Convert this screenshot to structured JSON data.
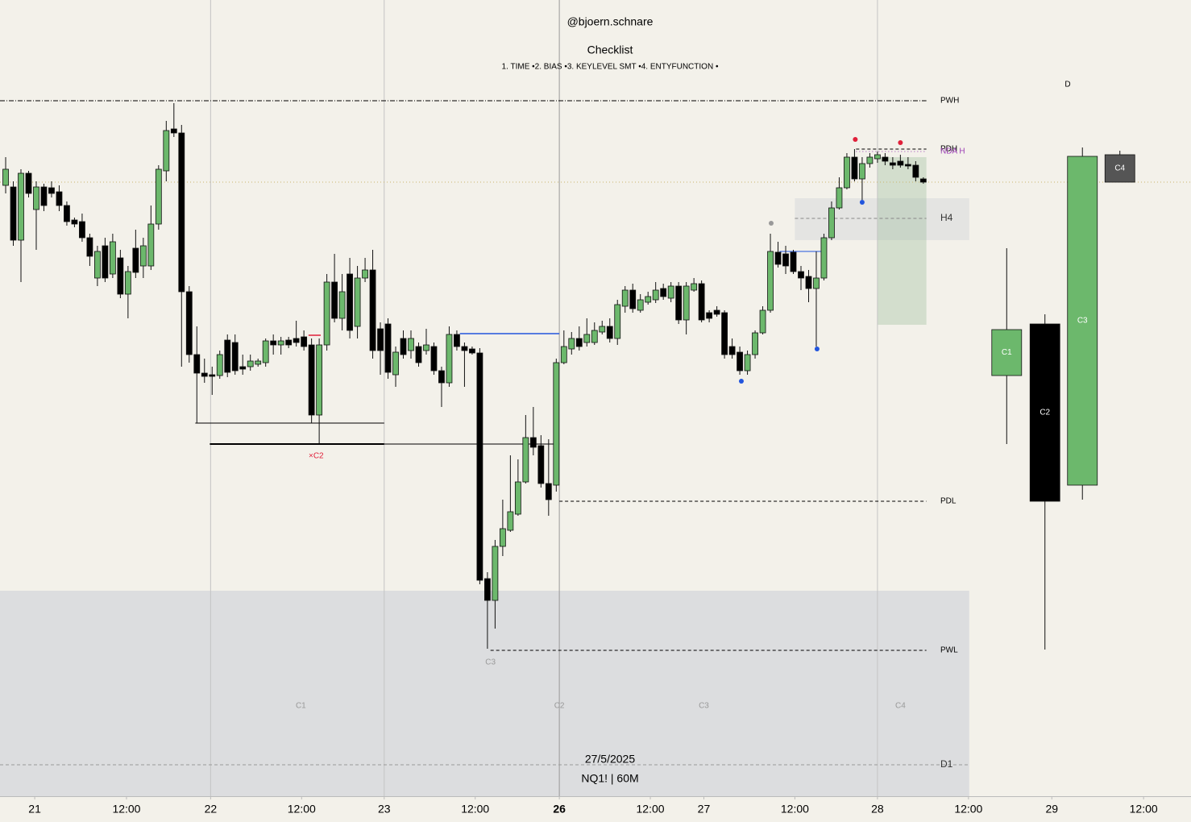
{
  "header": {
    "handle": "@bjoern.schnare",
    "checklist_title": "Checklist",
    "checklist": "1. TIME •2. BIAS •3. KEYLEVEL SMT •4. ENTYFUNCTION •",
    "timeframe_marker": "D"
  },
  "footer": {
    "date": "27/5/2025",
    "symbol": "NQ1! | 60M"
  },
  "chart_data": {
    "type": "candlestick",
    "xlim": [
      -0.74,
      155.0
    ],
    "ylim": [
      12,
      1000
    ],
    "xticks": [
      {
        "value": 3.8,
        "label": "21"
      },
      {
        "value": 15.8,
        "label": "12:00"
      },
      {
        "value": 26.8,
        "label": "22"
      },
      {
        "value": 38.7,
        "label": "12:00"
      },
      {
        "value": 49.5,
        "label": "23"
      },
      {
        "value": 61.4,
        "label": "12:00"
      },
      {
        "value": 72.4,
        "label": "26"
      },
      {
        "value": 84.3,
        "label": "12:00"
      },
      {
        "value": 91.3,
        "label": "27"
      },
      {
        "value": 103.2,
        "label": "12:00"
      },
      {
        "value": 114.0,
        "label": "28"
      },
      {
        "value": 125.9,
        "label": "12:00"
      },
      {
        "value": 136.8,
        "label": "29"
      },
      {
        "value": 148.8,
        "label": "12:00"
      }
    ],
    "separators": [
      26.8,
      49.5,
      72.4,
      114.0
    ],
    "up_color": "#6cb86c",
    "down_color": "#000000",
    "x": [
      0,
      1,
      2,
      3,
      4,
      5,
      6,
      7,
      8,
      9,
      10,
      11,
      12,
      13,
      14,
      15,
      16,
      17,
      18,
      19,
      20,
      21,
      22,
      23,
      24,
      25,
      26,
      27,
      28,
      29,
      30,
      31,
      32,
      33,
      34,
      35,
      36,
      37,
      38,
      39,
      40,
      41,
      42,
      43,
      44,
      45,
      46,
      47,
      48,
      49,
      50,
      51,
      52,
      53,
      54,
      55,
      56,
      57,
      58,
      59,
      60,
      61,
      62,
      63,
      64,
      65,
      66,
      67,
      68,
      69,
      70,
      71,
      72,
      73,
      74,
      75,
      76,
      77,
      78,
      79,
      80,
      81,
      82,
      83,
      84,
      85,
      86,
      87,
      88,
      89,
      90,
      91,
      92,
      93,
      94,
      95,
      96,
      97,
      98,
      99,
      100,
      101,
      102,
      103,
      104,
      105,
      106,
      107,
      108,
      109,
      110,
      111,
      112,
      113,
      114,
      115,
      116,
      117,
      118,
      119,
      120
    ],
    "open": [
      770,
      768,
      702,
      785,
      740,
      768,
      767,
      762,
      745,
      727,
      725,
      705,
      655,
      695,
      660,
      680,
      635,
      692,
      670,
      670,
      722,
      788,
      840,
      835,
      638,
      560,
      537,
      535,
      534,
      578,
      575,
      545,
      545,
      548,
      550,
      577,
      572,
      578,
      580,
      582,
      572,
      485,
      572,
      650,
      605,
      660,
      595,
      655,
      665,
      592,
      598,
      535,
      580,
      565,
      570,
      565,
      570,
      540,
      525,
      585,
      570,
      567,
      562,
      282,
      255,
      322,
      342,
      362,
      402,
      457,
      447,
      400,
      398,
      550,
      567,
      580,
      575,
      575,
      588,
      595,
      580,
      620,
      640,
      615,
      625,
      628,
      642,
      630,
      645,
      603,
      640,
      648,
      612,
      615,
      612,
      570,
      563,
      540,
      560,
      587,
      615,
      687,
      685,
      687,
      663,
      657,
      642,
      655,
      705,
      742,
      767,
      805,
      778,
      797,
      803,
      805,
      798,
      800,
      796,
      795,
      778
    ],
    "high": [
      805,
      775,
      790,
      788,
      775,
      772,
      775,
      770,
      750,
      730,
      735,
      710,
      695,
      705,
      710,
      690,
      670,
      715,
      705,
      745,
      795,
      850,
      872,
      845,
      645,
      595,
      555,
      545,
      565,
      585,
      585,
      560,
      560,
      555,
      580,
      585,
      582,
      582,
      602,
      590,
      580,
      580,
      660,
      685,
      660,
      680,
      670,
      680,
      690,
      600,
      605,
      570,
      590,
      590,
      575,
      592,
      575,
      545,
      595,
      590,
      575,
      570,
      568,
      290,
      330,
      380,
      435,
      430,
      485,
      495,
      460,
      455,
      555,
      590,
      588,
      595,
      605,
      600,
      602,
      605,
      628,
      645,
      648,
      635,
      638,
      650,
      648,
      650,
      650,
      650,
      655,
      652,
      615,
      620,
      615,
      580,
      570,
      565,
      590,
      620,
      710,
      700,
      695,
      690,
      670,
      665,
      688,
      710,
      750,
      780,
      810,
      815,
      805,
      810,
      812,
      810,
      805,
      808,
      805,
      800,
      780
    ],
    "low": [
      760,
      695,
      650,
      755,
      690,
      738,
      755,
      738,
      720,
      718,
      700,
      670,
      645,
      650,
      655,
      630,
      605,
      655,
      655,
      665,
      715,
      775,
      830,
      545,
      550,
      475,
      525,
      510,
      530,
      532,
      535,
      535,
      540,
      545,
      545,
      560,
      560,
      568,
      570,
      565,
      475,
      450,
      565,
      600,
      590,
      580,
      580,
      650,
      555,
      535,
      530,
      520,
      555,
      555,
      545,
      560,
      535,
      495,
      520,
      565,
      520,
      560,
      275,
      195,
      220,
      310,
      340,
      360,
      400,
      435,
      395,
      360,
      390,
      548,
      560,
      565,
      570,
      572,
      585,
      575,
      572,
      612,
      612,
      612,
      622,
      624,
      628,
      625,
      598,
      585,
      638,
      600,
      600,
      607,
      555,
      555,
      535,
      535,
      555,
      585,
      612,
      668,
      660,
      660,
      640,
      625,
      570,
      652,
      702,
      740,
      765,
      775,
      752,
      792,
      798,
      795,
      790,
      792,
      790,
      775,
      772
    ],
    "close": [
      790,
      702,
      785,
      760,
      768,
      745,
      760,
      745,
      725,
      722,
      705,
      682,
      688,
      655,
      700,
      635,
      663,
      662,
      695,
      722,
      790,
      838,
      835,
      638,
      560,
      537,
      533,
      533,
      560,
      538,
      540,
      542,
      552,
      552,
      577,
      572,
      577,
      572,
      575,
      570,
      485,
      572,
      650,
      605,
      638,
      590,
      655,
      665,
      565,
      565,
      538,
      563,
      560,
      580,
      550,
      572,
      540,
      525,
      585,
      570,
      565,
      562,
      280,
      255,
      322,
      344,
      365,
      402,
      457,
      445,
      400,
      380,
      550,
      570,
      580,
      570,
      585,
      590,
      595,
      580,
      622,
      640,
      617,
      628,
      632,
      640,
      632,
      645,
      603,
      645,
      648,
      603,
      605,
      610,
      560,
      560,
      540,
      560,
      587,
      615,
      688,
      672,
      670,
      663,
      655,
      642,
      655,
      705,
      742,
      767,
      805,
      778,
      797,
      805,
      808,
      800,
      795,
      795,
      794,
      780,
      774
    ],
    "htf": {
      "labels": [
        "C1",
        "C2",
        "C3",
        "C4"
      ],
      "x": [
        130.9,
        135.9,
        140.8,
        145.7
      ],
      "open": [
        534,
        598,
        398,
        808
      ],
      "high": [
        692,
        610,
        817,
        813
      ],
      "low": [
        449,
        194,
        380,
        774
      ],
      "close": [
        591,
        378,
        806,
        774
      ],
      "colors": [
        "#6cb86c",
        "#000000",
        "#6cb86c",
        "#555555"
      ]
    },
    "levels": [
      {
        "label": "PWH",
        "value": 875,
        "from": -0.74,
        "to": 120.4,
        "style": "dashdot",
        "color": "#000000"
      },
      {
        "label": "PDH",
        "value": 815,
        "from": 111.2,
        "to": 120.4,
        "style": "dashed",
        "color": "#000000"
      },
      {
        "label": "NDA H",
        "value": 812,
        "from": 111.2,
        "to": 120.4,
        "style": "dotted",
        "color": "#9b3fb5"
      },
      {
        "label": "H4",
        "value": 729,
        "from": 103.2,
        "to": 120.4,
        "style": "dashed",
        "color": "#888888"
      },
      {
        "label": "PDL",
        "value": 378,
        "from": 72.4,
        "to": 120.4,
        "style": "dashed",
        "color": "#000000"
      },
      {
        "label": "PWL",
        "value": 193,
        "from": 63.4,
        "to": 120.4,
        "style": "dashed",
        "color": "#000000"
      },
      {
        "label": "D1",
        "value": 51,
        "from": -0.74,
        "to": 126.0,
        "style": "dashed",
        "color": "#999999"
      }
    ],
    "lines": [
      {
        "value": 774,
        "from": -0.74,
        "to": 155.0,
        "color": "#c8b46a",
        "style": "dotted",
        "width": 1
      },
      {
        "value": 475,
        "from": 24.8,
        "to": 49.5,
        "color": "#000000",
        "style": "solid",
        "width": 1
      },
      {
        "value": 449,
        "from": 26.7,
        "to": 49.5,
        "color": "#000000",
        "style": "solid",
        "width": 2
      },
      {
        "value": 449,
        "from": 49.5,
        "to": 72.4,
        "color": "#000000",
        "style": "solid",
        "width": 1
      },
      {
        "value": 586,
        "from": 59.4,
        "to": 72.4,
        "color": "#2255dd",
        "style": "solid",
        "width": 1.5
      },
      {
        "value": 688,
        "from": 101.2,
        "to": 106.7,
        "color": "#2255dd",
        "style": "solid",
        "width": 1
      },
      {
        "value": 584,
        "from": 39.6,
        "to": 41.2,
        "color": "#e0203a",
        "style": "solid",
        "width": 1.5
      }
    ],
    "zones": [
      {
        "from": -0.74,
        "to": 126.0,
        "low": 12,
        "high": 267,
        "color": "#dcdddf"
      },
      {
        "from": 103.2,
        "to": 126.0,
        "low": 702,
        "high": 754,
        "color": "#e4e4e2"
      },
      {
        "from": 114.0,
        "to": 120.4,
        "low": 597,
        "high": 805,
        "color": "rgba(140,180,140,0.3)"
      }
    ],
    "markers": [
      {
        "x": 111.1,
        "value": 827,
        "color": "#e0203a"
      },
      {
        "x": 117.0,
        "value": 823,
        "color": "#e0203a"
      },
      {
        "x": 112.0,
        "value": 749,
        "color": "#2255dd"
      },
      {
        "x": 106.1,
        "value": 567,
        "color": "#2255dd"
      },
      {
        "x": 96.2,
        "value": 527,
        "color": "#2255dd"
      },
      {
        "x": 100.1,
        "value": 723,
        "color": "#999999"
      }
    ],
    "annotations": [
      {
        "text": "C1",
        "x": 38.6,
        "value": 124,
        "color": "#999999"
      },
      {
        "text": "C2",
        "x": 72.4,
        "value": 124,
        "color": "#999999"
      },
      {
        "text": "C3",
        "x": 91.3,
        "value": 124,
        "color": "#999999"
      },
      {
        "text": "C4",
        "x": 117.0,
        "value": 124,
        "color": "#999999"
      },
      {
        "text": "×C2",
        "x": 40.6,
        "value": 434,
        "color": "#e0203a"
      },
      {
        "text": "C3",
        "x": 63.4,
        "value": 178,
        "color": "#999999"
      }
    ]
  }
}
